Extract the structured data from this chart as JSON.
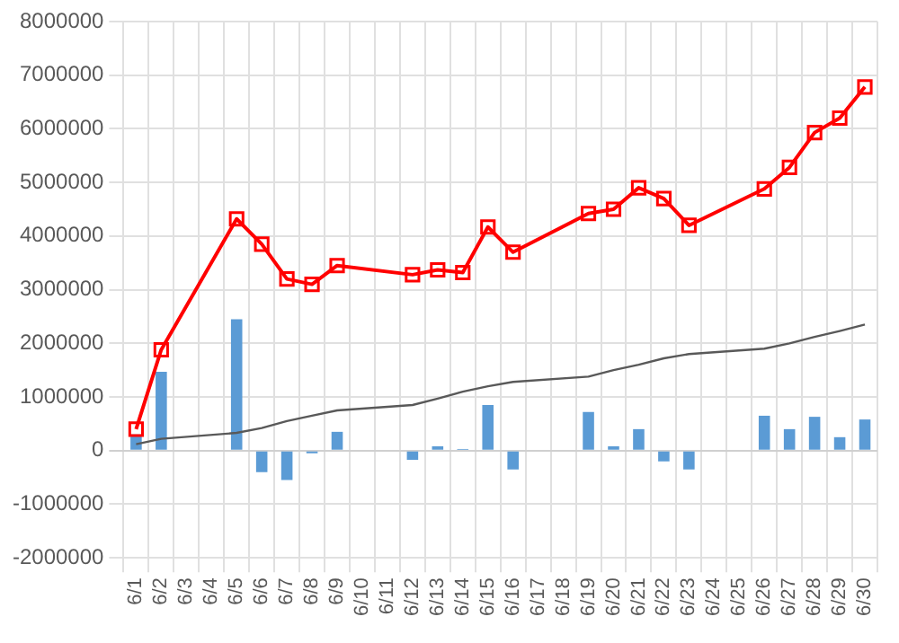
{
  "chart_data": {
    "type": "bar",
    "categories": [
      "6/1",
      "6/2",
      "6/3",
      "6/4",
      "6/5",
      "6/6",
      "6/7",
      "6/8",
      "6/9",
      "6/10",
      "6/11",
      "6/12",
      "6/13",
      "6/14",
      "6/15",
      "6/16",
      "6/17",
      "6/18",
      "6/19",
      "6/20",
      "6/21",
      "6/22",
      "6/23",
      "6/24",
      "6/25",
      "6/26",
      "6/27",
      "6/28",
      "6/29",
      "6/30"
    ],
    "series": [
      {
        "color": "#5b9bd5",
        "values": [
          300000,
          1470000,
          null,
          null,
          2450000,
          -400000,
          -550000,
          -50000,
          350000,
          null,
          null,
          -170000,
          80000,
          30000,
          850000,
          -350000,
          null,
          null,
          720000,
          80000,
          400000,
          -200000,
          -350000,
          null,
          null,
          650000,
          400000,
          630000,
          250000,
          580000
        ]
      },
      {
        "type": "line",
        "color": "#ff0000",
        "marker": "square",
        "values": [
          400000,
          1880000,
          null,
          null,
          4320000,
          3850000,
          3200000,
          3100000,
          3450000,
          null,
          null,
          3280000,
          3370000,
          3320000,
          4170000,
          3700000,
          null,
          null,
          4420000,
          4500000,
          4900000,
          4700000,
          4200000,
          null,
          null,
          4880000,
          5280000,
          5930000,
          6200000,
          6780000
        ]
      },
      {
        "type": "line",
        "color": "#595959",
        "marker": "none",
        "values": [
          120000,
          220000,
          null,
          null,
          330000,
          420000,
          550000,
          650000,
          750000,
          null,
          null,
          850000,
          970000,
          1100000,
          1200000,
          1280000,
          null,
          null,
          1380000,
          1500000,
          1600000,
          1720000,
          1800000,
          null,
          null,
          1900000,
          2000000,
          2120000,
          2230000,
          2350000
        ]
      }
    ],
    "ylim": [
      -2000000,
      8000000
    ],
    "yticks": [
      -2000000,
      -1000000,
      0,
      1000000,
      2000000,
      3000000,
      4000000,
      5000000,
      6000000,
      7000000,
      8000000
    ],
    "grid": true
  }
}
